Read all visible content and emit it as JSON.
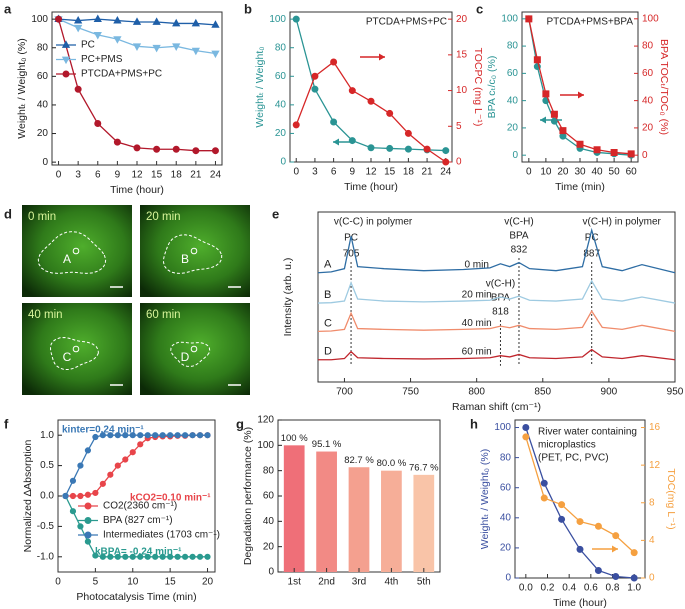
{
  "chart_data": [
    {
      "panel": "a",
      "type": "line",
      "xlabel": "Time (hour)",
      "ylabel": "Weightₜ / Weight₀ (%)",
      "x": [
        0,
        3,
        6,
        9,
        12,
        15,
        18,
        21,
        24
      ],
      "xlim": [
        -1,
        25
      ],
      "xticks": [
        0,
        3,
        6,
        9,
        12,
        15,
        18,
        21,
        24
      ],
      "ylim": [
        -2,
        105
      ],
      "yticks": [
        0,
        20,
        40,
        60,
        80,
        100
      ],
      "legend": "upper left",
      "series": [
        {
          "name": "PC",
          "color": "#1f5fa8",
          "marker": "triangle-up",
          "values": [
            100,
            99,
            100,
            99,
            98,
            98,
            97,
            97,
            96
          ]
        },
        {
          "name": "PC+PMS",
          "color": "#7ab8e0",
          "marker": "triangle-down",
          "values": [
            100,
            94,
            89,
            86,
            81,
            80,
            81,
            78,
            76
          ]
        },
        {
          "name": "PTCDA+PMS+PC",
          "color": "#b2182b",
          "marker": "circle",
          "values": [
            100,
            51,
            27,
            14,
            10,
            9,
            9,
            8,
            8
          ]
        }
      ]
    },
    {
      "panel": "b",
      "type": "line",
      "title": "PTCDA+PMS+PC",
      "xlabel": "Time (hour)",
      "ylabel": "Weightₜ / Weight₀",
      "y2label": "TOCPC (mg L⁻¹)",
      "x": [
        0,
        3,
        6,
        9,
        12,
        15,
        18,
        21,
        24
      ],
      "xlim": [
        -1,
        25
      ],
      "xticks": [
        0,
        3,
        6,
        9,
        12,
        15,
        18,
        21,
        24
      ],
      "ylim": [
        0,
        105
      ],
      "yticks": [
        0,
        20,
        40,
        60,
        80,
        100
      ],
      "y2lim": [
        0,
        21
      ],
      "y2ticks": [
        0,
        5,
        10,
        15,
        20
      ],
      "series": [
        {
          "name": "Weight",
          "color": "#2a9494",
          "marker": "circle",
          "values": [
            100,
            51,
            28,
            15,
            10,
            9.5,
            9,
            8.5,
            8
          ]
        },
        {
          "name": "TOC",
          "color": "#d62728",
          "marker": "circle",
          "axis": "y2",
          "values": [
            5.2,
            12,
            14,
            10,
            8.5,
            6.8,
            4,
            1.8,
            0
          ]
        }
      ]
    },
    {
      "panel": "c",
      "type": "line",
      "title": "PTCDA+PMS+BPA",
      "xlabel": "Time (min)",
      "ylabel": "BPA cₜ/c₀ (%)",
      "y2label": "BPA TOCₜ/TOC₀ (%)",
      "x": [
        0,
        5,
        10,
        15,
        20,
        30,
        40,
        50,
        60
      ],
      "xlim": [
        -4,
        64
      ],
      "xticks": [
        0,
        10,
        20,
        30,
        40,
        50,
        60
      ],
      "ylim": [
        -5,
        105
      ],
      "yticks": [
        0,
        20,
        40,
        60,
        80,
        100
      ],
      "y2lim": [
        -5,
        105
      ],
      "y2ticks": [
        0,
        20,
        40,
        60,
        80,
        100
      ],
      "series": [
        {
          "name": "BPA",
          "color": "#2a9494",
          "marker": "circle",
          "values": [
            100,
            65,
            40,
            25,
            14,
            5,
            2,
            1,
            0
          ]
        },
        {
          "name": "TOC",
          "color": "#d62728",
          "marker": "square",
          "axis": "y2",
          "values": [
            100,
            70,
            45,
            30,
            18,
            8,
            4,
            2,
            1
          ]
        }
      ]
    },
    {
      "panel": "d",
      "type": "image",
      "images": [
        {
          "time": "0 min",
          "label": "A"
        },
        {
          "time": "20 min",
          "label": "B"
        },
        {
          "time": "40 min",
          "label": "C"
        },
        {
          "time": "60 min",
          "label": "D"
        }
      ]
    },
    {
      "panel": "e",
      "type": "spectra",
      "xlabel": "Raman shift (cm⁻¹)",
      "ylabel": "Intensity (arb. u.)",
      "x": [
        680,
        690,
        700,
        705,
        710,
        730,
        760,
        790,
        810,
        818,
        825,
        832,
        840,
        860,
        880,
        887,
        895,
        910,
        925,
        950
      ],
      "xlim": [
        680,
        950
      ],
      "xticks": [
        700,
        750,
        800,
        850,
        900,
        950
      ],
      "ylim": [
        0.8,
        5
      ],
      "peaks": [
        {
          "x": 705,
          "lines": [
            "v(C-C) in polymer",
            "PC"
          ]
        },
        {
          "x": 818,
          "lines": [
            "v(C-H)",
            "BPA"
          ]
        },
        {
          "x": 832,
          "lines": [
            "v(C-H)",
            "BPA"
          ]
        },
        {
          "x": 887,
          "lines": [
            "v(C-H) in polymer",
            "PC"
          ]
        }
      ],
      "series": [
        {
          "name": "A",
          "label": "0 min",
          "color": "#2e6da4",
          "values": [
            3.5,
            3.52,
            3.6,
            4.4,
            3.65,
            3.6,
            3.55,
            3.58,
            3.62,
            3.72,
            3.65,
            3.75,
            3.6,
            3.55,
            3.65,
            4.55,
            3.65,
            3.55,
            3.7,
            3.5
          ]
        },
        {
          "name": "B",
          "label": "20 min",
          "color": "#9ecae1",
          "values": [
            2.75,
            2.76,
            2.8,
            3.25,
            2.85,
            2.8,
            2.78,
            2.8,
            2.82,
            2.9,
            2.85,
            2.92,
            2.82,
            2.8,
            2.85,
            3.3,
            2.85,
            2.8,
            2.9,
            2.75
          ]
        },
        {
          "name": "C",
          "label": "40 min",
          "color": "#f08c6c",
          "values": [
            2.05,
            2.06,
            2.1,
            2.5,
            2.12,
            2.1,
            2.08,
            2.1,
            2.12,
            2.18,
            2.14,
            2.2,
            2.12,
            2.1,
            2.15,
            2.55,
            2.15,
            2.1,
            2.2,
            2.05
          ]
        },
        {
          "name": "D",
          "label": "60 min",
          "color": "#c0262d",
          "values": [
            1.35,
            1.35,
            1.38,
            1.55,
            1.4,
            1.38,
            1.37,
            1.38,
            1.4,
            1.45,
            1.42,
            1.48,
            1.4,
            1.38,
            1.42,
            1.6,
            1.42,
            1.38,
            1.45,
            1.35
          ]
        }
      ]
    },
    {
      "panel": "f",
      "type": "scatter",
      "xlabel": "Photocatalysis Time (min)",
      "ylabel": "Normalized ∆Absorption",
      "x": [
        1,
        2,
        3,
        4,
        5,
        6,
        7,
        8,
        9,
        10,
        11,
        12,
        13,
        14,
        15,
        16,
        17,
        18,
        19,
        20
      ],
      "xlim": [
        0,
        21
      ],
      "xticks": [
        0,
        5,
        10,
        15,
        20
      ],
      "ylim": [
        -1.25,
        1.25
      ],
      "yticks": [
        {
          "value": -1,
          "label": "-1.0"
        },
        -0.5,
        {
          "value": 0,
          "label": "0.0"
        },
        0.5,
        {
          "value": 1,
          "label": "1.0"
        }
      ],
      "legend": "center",
      "annotations": [
        {
          "text": "kinter=0.24 min⁻¹",
          "color": "#3a78b5"
        },
        {
          "text": "kCO2=0.10 min⁻¹",
          "color": "#e8454a"
        },
        {
          "text": "kBPA= -0.24 min⁻¹",
          "color": "#2a9a8f"
        }
      ],
      "series": [
        {
          "name": "CO2(2360 cm⁻¹)",
          "color": "#e8454a",
          "marker": "circle",
          "values": [
            0,
            0,
            0,
            0.02,
            0.05,
            0.2,
            0.35,
            0.5,
            0.6,
            0.72,
            0.85,
            0.95,
            0.97,
            0.98,
            0.98,
            0.99,
            0.99,
            1,
            1,
            1
          ]
        },
        {
          "name": "BPA (827 cm⁻¹)",
          "color": "#2a9a8f",
          "marker": "circle",
          "values": [
            0,
            -0.25,
            -0.5,
            -0.75,
            -0.98,
            -1,
            -1,
            -1,
            -1,
            -1,
            -1,
            -1,
            -1,
            -1,
            -1,
            -1,
            -1,
            -1,
            -1,
            -1
          ]
        },
        {
          "name": "Intermediates (1703 cm⁻¹)",
          "color": "#3a78b5",
          "marker": "circle",
          "values": [
            0,
            0.25,
            0.5,
            0.75,
            0.97,
            1,
            1,
            1,
            1,
            1,
            1,
            1,
            1,
            1,
            1,
            1,
            1,
            1,
            1,
            1
          ]
        }
      ]
    },
    {
      "panel": "g",
      "type": "bar",
      "ylabel": "Degradation performance (%)",
      "categories": [
        "1st",
        "2nd",
        "3rd",
        "4th",
        "5th"
      ],
      "values": [
        100,
        95.1,
        82.7,
        80.0,
        76.7
      ],
      "value_labels": [
        "100 %",
        "95.1 %",
        "82.7 %",
        "80.0 %",
        "76.7 %"
      ],
      "colors": [
        "#ef6f78",
        "#f28a85",
        "#f4a08f",
        "#f6ae98",
        "#f9c4a8"
      ],
      "ylim": [
        0,
        120
      ],
      "yticks": [
        0,
        20,
        40,
        60,
        80,
        100,
        120
      ]
    },
    {
      "panel": "h",
      "type": "line",
      "xlabel": "Time (hour)",
      "ylabel": "Weightₜ / Weight₀ (%)",
      "y2label": "TOC(mg L⁻¹)",
      "x": [
        0,
        0.17,
        0.33,
        0.5,
        0.67,
        0.83,
        1
      ],
      "xlim": [
        -0.1,
        1.1
      ],
      "xticks": [
        {
          "value": 0,
          "label": "0.0"
        },
        0.2,
        0.4,
        0.6,
        0.8,
        {
          "value": 1,
          "label": "1.0"
        }
      ],
      "ylim": [
        0,
        105
      ],
      "yticks": [
        0,
        20,
        40,
        60,
        80,
        100
      ],
      "y2lim": [
        0,
        16.8
      ],
      "y2ticks": [
        0,
        4,
        8,
        12,
        16
      ],
      "annotations": [
        {
          "text": "River water containing",
          "color": "#222"
        },
        {
          "text": "microplastics",
          "color": "#222"
        },
        {
          "text": "(PET, PC, PVC)",
          "color": "#222"
        }
      ],
      "series": [
        {
          "name": "Weight",
          "color": "#3a4fa0",
          "marker": "circle",
          "values": [
            100,
            63,
            39,
            19,
            5,
            1,
            0
          ]
        },
        {
          "name": "TOC",
          "color": "#f5a040",
          "marker": "circle",
          "axis": "y2",
          "values": [
            15,
            8.5,
            7.8,
            6,
            5.5,
            4.5,
            2.7
          ]
        }
      ]
    }
  ]
}
